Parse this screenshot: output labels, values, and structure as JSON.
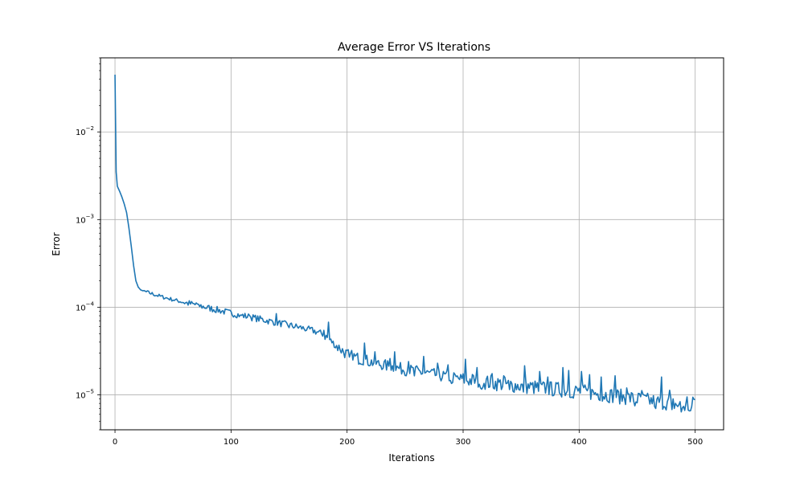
{
  "chart_data": {
    "type": "line",
    "title": "Average Error VS Iterations",
    "xlabel": "Iterations",
    "ylabel": "Error",
    "xlim": [
      -12.5,
      524.5
    ],
    "ylim": [
      4e-06,
      0.07
    ],
    "yscale": "log",
    "grid": true,
    "line_color": "#1f77b4",
    "x_ticks": [
      {
        "value": 0,
        "label": "0"
      },
      {
        "value": 100,
        "label": "100"
      },
      {
        "value": 200,
        "label": "200"
      },
      {
        "value": 300,
        "label": "300"
      },
      {
        "value": 400,
        "label": "400"
      },
      {
        "value": 500,
        "label": "500"
      }
    ],
    "y_ticks": [
      {
        "value": 1e-05,
        "base": "10",
        "exp": "−5"
      },
      {
        "value": 0.0001,
        "base": "10",
        "exp": "−4"
      },
      {
        "value": 0.001,
        "base": "10",
        "exp": "−3"
      },
      {
        "value": 0.01,
        "base": "10",
        "exp": "−2"
      }
    ],
    "series": [
      {
        "anchors": [
          [
            0,
            0.045
          ],
          [
            1,
            0.0035
          ],
          [
            2,
            0.0024
          ],
          [
            4,
            0.0021
          ],
          [
            6,
            0.0018
          ],
          [
            8,
            0.0015
          ],
          [
            10,
            0.0012
          ],
          [
            12,
            0.0008
          ],
          [
            14,
            0.0005
          ],
          [
            16,
            0.0003
          ],
          [
            18,
            0.0002
          ],
          [
            20,
            0.00017
          ],
          [
            22,
            0.000158
          ],
          [
            25,
            0.000152
          ],
          [
            30,
            0.000145
          ],
          [
            40,
            0.000132
          ],
          [
            50,
            0.000122
          ],
          [
            60,
            0.000113
          ],
          [
            70,
            0.000106
          ],
          [
            80,
            9.85e-05
          ],
          [
            90,
            9.2e-05
          ],
          [
            100,
            8.55e-05
          ],
          [
            120,
            7.55e-05
          ],
          [
            140,
            6.65e-05
          ],
          [
            160,
            5.85e-05
          ],
          [
            170,
            5.45e-05
          ],
          [
            180,
            4.9e-05
          ],
          [
            190,
            3.7e-05
          ],
          [
            200,
            2.9e-05
          ],
          [
            210,
            2.6e-05
          ],
          [
            230,
            2.2e-05
          ],
          [
            250,
            1.95e-05
          ],
          [
            270,
            1.75e-05
          ],
          [
            300,
            1.5e-05
          ],
          [
            330,
            1.35e-05
          ],
          [
            360,
            1.22e-05
          ],
          [
            400,
            1.1e-05
          ],
          [
            430,
            9.8e-06
          ],
          [
            460,
            8.6e-06
          ],
          [
            480,
            8e-06
          ],
          [
            490,
            7.4e-06
          ],
          [
            497,
            7.2e-06
          ],
          [
            500,
            9.5e-06
          ]
        ],
        "spikes": [
          [
            70,
            0.000112
          ],
          [
            72,
            0.000108
          ],
          [
            108,
            8.15e-05
          ],
          [
            116,
            8.05e-05
          ],
          [
            126,
            7.45e-05
          ],
          [
            139,
            8.45e-05
          ],
          [
            150,
            5.85e-05
          ],
          [
            166,
            5.85e-05
          ],
          [
            180,
            5.45e-05
          ],
          [
            184,
            6.75e-05
          ],
          [
            194,
            3.25e-05
          ],
          [
            202,
            2.7e-05
          ],
          [
            215,
            3.9e-05
          ],
          [
            224,
            3.1e-05
          ],
          [
            237,
            2.6e-05
          ],
          [
            241,
            3.1e-05
          ],
          [
            253,
            2.4e-05
          ],
          [
            266,
            2.75e-05
          ],
          [
            278,
            2.3e-05
          ],
          [
            287,
            2.2e-05
          ],
          [
            302,
            2.55e-05
          ],
          [
            312,
            2.05e-05
          ],
          [
            325,
            1.75e-05
          ],
          [
            335,
            1.65e-05
          ],
          [
            353,
            2.15e-05
          ],
          [
            366,
            1.85e-05
          ],
          [
            373,
            1.6e-05
          ],
          [
            386,
            2.05e-05
          ],
          [
            391,
            1.9e-05
          ],
          [
            402,
            1.85e-05
          ],
          [
            409,
            1.7e-05
          ],
          [
            419,
            1.6e-05
          ],
          [
            431,
            1.65e-05
          ],
          [
            441,
            1.2e-05
          ],
          [
            454,
            1.12e-05
          ],
          [
            471,
            1.6e-05
          ],
          [
            478,
            1.13e-05
          ],
          [
            493,
            9.5e-06
          ]
        ],
        "dips": [
          [
            181,
            4.3e-05
          ],
          [
            190,
            3.45e-05
          ],
          [
            205,
            2.5e-05
          ],
          [
            230,
            1.95e-05
          ],
          [
            258,
            1.65e-05
          ],
          [
            290,
            1.35e-05
          ],
          [
            315,
            1.2e-05
          ],
          [
            340,
            1.15e-05
          ],
          [
            352,
            1.08e-05
          ],
          [
            365,
            1.1e-05
          ],
          [
            395,
            9.2e-06
          ],
          [
            420,
            8.5e-06
          ],
          [
            448,
            7.5e-06
          ],
          [
            466,
            7e-06
          ],
          [
            480,
            6.8e-06
          ],
          [
            488,
            6.4e-06
          ],
          [
            496,
            6.6e-06
          ]
        ]
      }
    ]
  }
}
